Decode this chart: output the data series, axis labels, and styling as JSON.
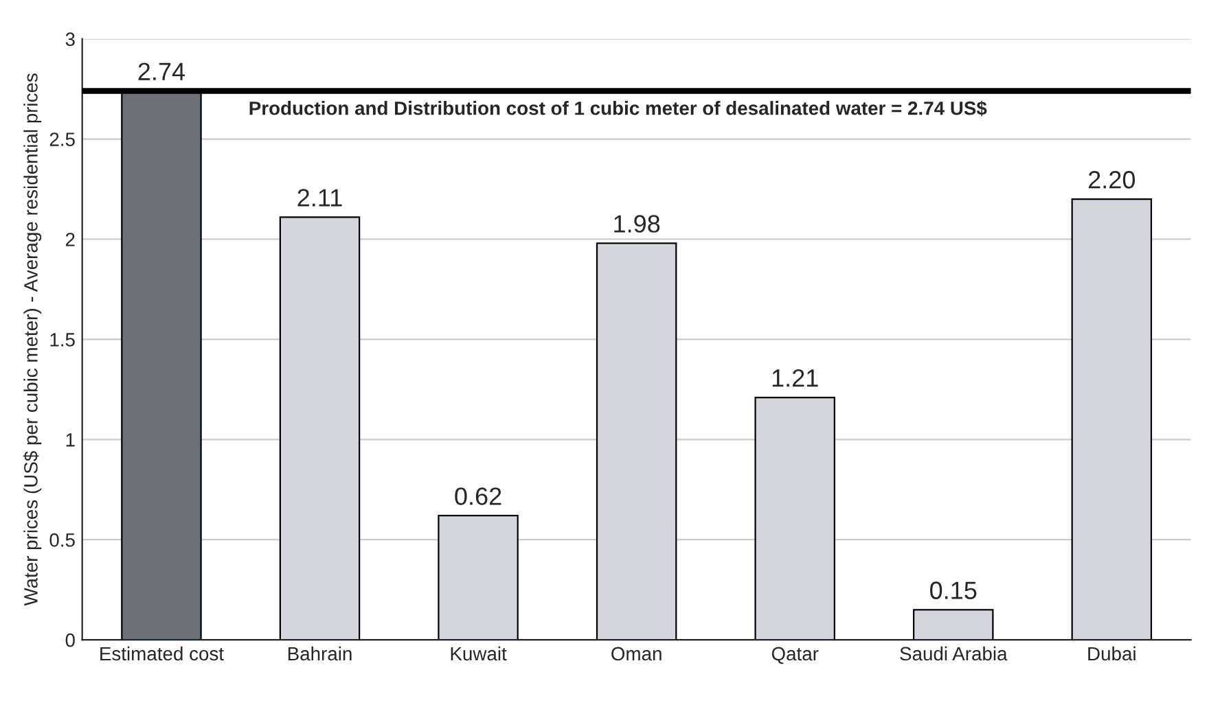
{
  "chart_data": {
    "type": "bar",
    "ylabel": "Water prices (US$ per cubic meter) - Average residential prices",
    "categories": [
      "Estimated cost",
      "Bahrain",
      "Kuwait",
      "Oman",
      "Qatar",
      "Saudi Arabia",
      "Dubai"
    ],
    "values": [
      2.74,
      2.11,
      0.62,
      1.98,
      1.21,
      0.15,
      2.2
    ],
    "value_labels": [
      "2.74",
      "2.11",
      "0.62",
      "1.98",
      "1.21",
      "0.15",
      "2.20"
    ],
    "colors": [
      "#6b7079",
      "#d3d6de",
      "#d3d6de",
      "#d3d6de",
      "#d3d6de",
      "#d3d6de",
      "#d3d6de"
    ],
    "ylim": [
      0,
      3
    ],
    "yticks": [
      0,
      0.5,
      1,
      1.5,
      2,
      2.5,
      3
    ],
    "grid": "y",
    "ref_lines": [
      {
        "axis": "y",
        "value": 2.74,
        "label": "Production and Distribution cost of 1 cubic meter of desalinated water = 2.74 US$",
        "color": "#000000"
      }
    ]
  }
}
